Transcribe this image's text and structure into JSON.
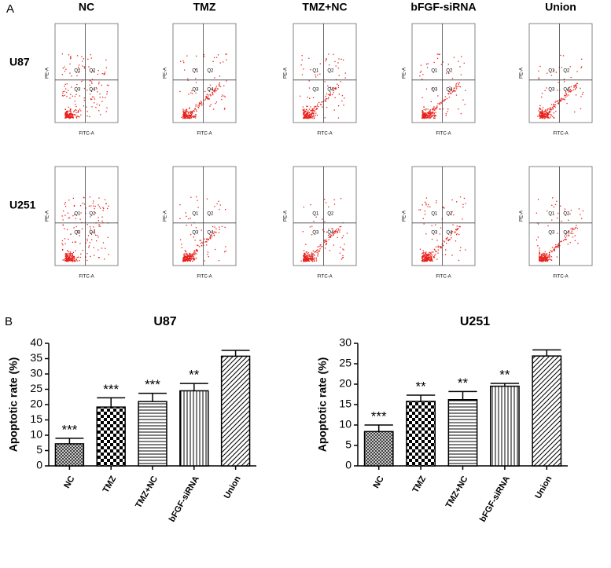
{
  "panel_labels": [
    "A",
    "B"
  ],
  "flow": {
    "columns": [
      "NC",
      "TMZ",
      "TMZ+NC",
      "bFGF-siRNA",
      "Union"
    ],
    "rows": [
      "U87",
      "U251"
    ],
    "quadrants": [
      "Q1",
      "Q2",
      "Q3",
      "Q4"
    ],
    "x_label": "FITC-A",
    "y_label": "PE-A"
  },
  "chart_data": [
    {
      "type": "bar",
      "title": "U87",
      "y_label": "Apoptotic rate (%)",
      "categories": [
        "NC",
        "TMZ",
        "TMZ+NC",
        "bFGF-siRNA",
        "Union"
      ],
      "values": [
        7.2,
        19.2,
        21.0,
        24.5,
        35.8
      ],
      "errors": [
        1.8,
        3.0,
        2.7,
        2.4,
        1.9
      ],
      "annotations": [
        "***",
        "***",
        "***",
        "**",
        null
      ],
      "color": "#000000",
      "ylim": [
        0,
        40
      ],
      "yticks": [
        0,
        5,
        10,
        15,
        20,
        25,
        30,
        35,
        40
      ]
    },
    {
      "type": "bar",
      "title": "U251",
      "y_label": "Apoptotic rate (%)",
      "categories": [
        "NC",
        "TMZ",
        "TMZ+NC",
        "bFGF-siRNA",
        "Union"
      ],
      "values": [
        8.4,
        15.8,
        16.2,
        19.5,
        26.9
      ],
      "errors": [
        1.6,
        1.5,
        2.0,
        0.7,
        1.5
      ],
      "annotations": [
        "***",
        "**",
        "**",
        "**",
        null
      ],
      "color": "#000000",
      "ylim": [
        0,
        30
      ],
      "yticks": [
        0,
        5,
        10,
        15,
        20,
        25,
        30
      ]
    }
  ]
}
